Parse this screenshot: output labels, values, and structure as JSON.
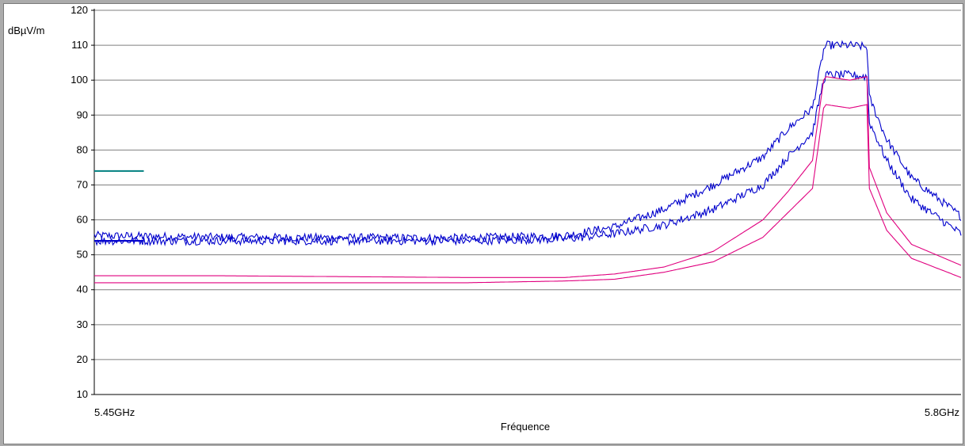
{
  "chart_data": {
    "type": "line",
    "ylabel": "dBµV/m",
    "xlabel": "Fréquence",
    "x_tick_labels": [
      "5.45GHz",
      "5.8GHz"
    ],
    "y_ticks": [
      10,
      20,
      30,
      40,
      50,
      60,
      70,
      80,
      90,
      100,
      110,
      120
    ],
    "xlim_ghz": [
      5.45,
      5.8
    ],
    "ylim": [
      10,
      120
    ],
    "grid": "horizontal",
    "colors": {
      "peak": "#0000cc",
      "average": "#e0007f",
      "limit": "#008080"
    },
    "limit_lines": [
      {
        "x": [
          5.45,
          5.47
        ],
        "y": [
          74.0,
          74.0
        ],
        "color": "#008080"
      },
      {
        "x": [
          5.45,
          5.47
        ],
        "y": [
          54.0,
          54.0
        ],
        "color": "#0000cc"
      }
    ],
    "series": [
      {
        "color": "#0000cc",
        "noisy": true,
        "x": [
          5.45,
          5.5,
          5.6,
          5.64,
          5.66,
          5.68,
          5.7,
          5.72,
          5.73,
          5.74,
          5.7445,
          5.7455,
          5.755,
          5.762,
          5.763,
          5.77,
          5.78,
          5.8
        ],
        "y": [
          55.5,
          55.0,
          54.8,
          55.5,
          58.0,
          63.0,
          70.0,
          78.0,
          86.0,
          92.0,
          108.5,
          110.0,
          110.0,
          109.5,
          95.0,
          83.0,
          72.0,
          61.0
        ]
      },
      {
        "color": "#0000cc",
        "noisy": true,
        "x": [
          5.45,
          5.5,
          5.6,
          5.64,
          5.66,
          5.68,
          5.7,
          5.72,
          5.73,
          5.74,
          5.7445,
          5.7455,
          5.755,
          5.762,
          5.763,
          5.77,
          5.78,
          5.8
        ],
        "y": [
          54.0,
          54.0,
          54.0,
          54.5,
          56.0,
          58.5,
          63.0,
          70.0,
          78.0,
          85.0,
          100.0,
          101.5,
          101.5,
          101.0,
          88.0,
          77.0,
          66.0,
          56.0
        ]
      },
      {
        "color": "#e0007f",
        "noisy": false,
        "x": [
          5.45,
          5.5,
          5.6,
          5.64,
          5.66,
          5.68,
          5.7,
          5.72,
          5.73,
          5.74,
          5.7445,
          5.7455,
          5.755,
          5.762,
          5.763,
          5.77,
          5.78,
          5.8
        ],
        "y": [
          44.0,
          44.0,
          43.5,
          43.5,
          44.5,
          46.5,
          51.0,
          60.0,
          68.0,
          77.0,
          100.0,
          101.0,
          100.0,
          101.0,
          75.0,
          62.0,
          53.0,
          47.0
        ]
      },
      {
        "color": "#e0007f",
        "noisy": false,
        "x": [
          5.45,
          5.5,
          5.6,
          5.64,
          5.66,
          5.68,
          5.7,
          5.72,
          5.73,
          5.74,
          5.7445,
          5.7455,
          5.755,
          5.762,
          5.763,
          5.77,
          5.78,
          5.8
        ],
        "y": [
          42.0,
          42.0,
          42.0,
          42.5,
          43.0,
          45.0,
          48.0,
          55.0,
          62.0,
          69.0,
          92.0,
          93.0,
          92.0,
          93.0,
          69.0,
          57.0,
          49.0,
          43.5
        ]
      }
    ]
  }
}
